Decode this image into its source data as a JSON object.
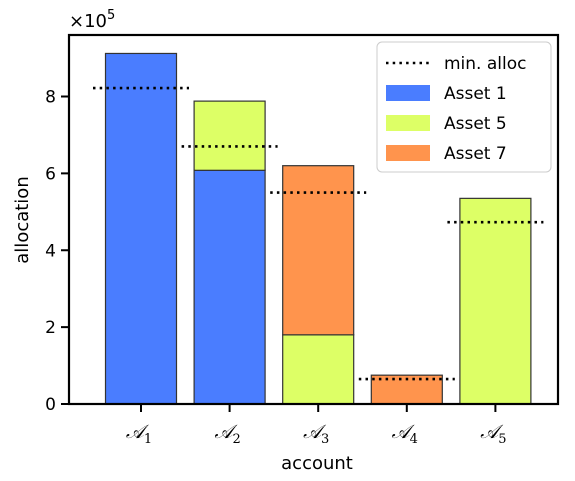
{
  "chart_data": {
    "type": "bar",
    "stacked": true,
    "xlabel": "account",
    "ylabel": "allocation",
    "ylim": [
      0,
      960000
    ],
    "yticks": [
      0,
      2,
      4,
      6,
      8
    ],
    "y_multiplier": "×10",
    "y_multiplier_exp": "5",
    "categories": [
      {
        "base": "𝒜",
        "sub": "1"
      },
      {
        "base": "𝒜",
        "sub": "2"
      },
      {
        "base": "𝒜",
        "sub": "3"
      },
      {
        "base": "𝒜",
        "sub": "4"
      },
      {
        "base": "𝒜",
        "sub": "5"
      }
    ],
    "series": [
      {
        "name": "Asset 1",
        "color": "#4a7dff",
        "values": [
          912000,
          608000,
          0,
          0,
          0
        ]
      },
      {
        "name": "Asset 5",
        "color": "#ddff66",
        "values": [
          0,
          180000,
          180000,
          0,
          535000
        ]
      },
      {
        "name": "Asset 7",
        "color": "#ff944d",
        "values": [
          0,
          0,
          440000,
          75000,
          0
        ]
      }
    ],
    "min_alloc": {
      "name": "min. alloc",
      "values": [
        822000,
        670000,
        550000,
        65000,
        473000
      ]
    },
    "legend": {
      "placement": "top-right"
    },
    "grid": false
  }
}
